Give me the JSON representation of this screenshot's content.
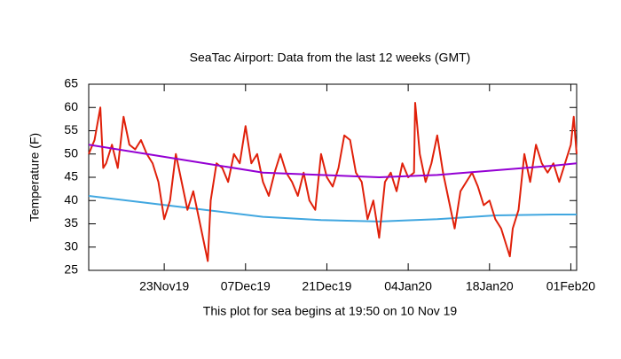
{
  "chart_data": {
    "type": "line",
    "title": "SeaTac Airport:   Data from the last 12 weeks (GMT)",
    "xlabel": "This plot for sea begins at 19:50 on 10 Nov 19",
    "ylabel": "Temperature (F)",
    "xlim": [
      0,
      84
    ],
    "ylim": [
      25,
      65
    ],
    "yticks": [
      25,
      30,
      35,
      40,
      45,
      50,
      55,
      60,
      65
    ],
    "xticks": [
      {
        "value": 13,
        "label": "23Nov19"
      },
      {
        "value": 27,
        "label": "07Dec19"
      },
      {
        "value": 41,
        "label": "21Dec19"
      },
      {
        "value": 55,
        "label": "04Jan20"
      },
      {
        "value": 69,
        "label": "18Jan20"
      },
      {
        "value": 83,
        "label": "01Feb20"
      }
    ],
    "series": [
      {
        "color": "#41a7e0",
        "x": [
          0,
          10,
          20,
          30,
          40,
          50,
          60,
          70,
          80,
          84
        ],
        "values": [
          41,
          39.5,
          38,
          36.5,
          35.8,
          35.5,
          36,
          36.8,
          37,
          37
        ]
      },
      {
        "color": "#e0200a",
        "x": [
          0,
          1,
          2,
          2.5,
          3,
          4,
          5,
          6,
          7,
          8,
          9,
          10,
          11,
          12,
          13,
          14,
          15,
          16,
          17,
          18,
          19,
          20,
          20.5,
          21,
          22,
          23,
          24,
          25,
          26,
          27,
          28,
          29,
          30,
          31,
          32,
          33,
          34,
          35,
          36,
          37,
          38,
          39,
          40,
          41,
          42,
          43,
          44,
          45,
          46,
          47,
          48,
          49,
          50,
          51,
          52,
          53,
          54,
          55,
          56,
          56.2,
          57,
          58,
          59,
          60,
          61,
          62,
          63,
          64,
          65,
          66,
          67,
          68,
          69,
          70,
          71,
          72,
          72.5,
          73,
          74,
          75,
          76,
          77,
          78,
          79,
          80,
          81,
          82,
          83,
          83.5,
          84
        ],
        "values": [
          50,
          53,
          60,
          47,
          48,
          52,
          47,
          58,
          52,
          51,
          53,
          50,
          48,
          44,
          36,
          40,
          50,
          44,
          38,
          42,
          36,
          30,
          27,
          40,
          48,
          47,
          44,
          50,
          48,
          56,
          48,
          50,
          44,
          41,
          46,
          50,
          46,
          44,
          41,
          46,
          40,
          38,
          50,
          45,
          43,
          47,
          54,
          53,
          46,
          44,
          36,
          40,
          32,
          44,
          46,
          42,
          48,
          45,
          46,
          61,
          50,
          44,
          48,
          54,
          46,
          40,
          34,
          42,
          44,
          46,
          43,
          39,
          40,
          36,
          34,
          30,
          28,
          34,
          38,
          50,
          44,
          52,
          48,
          46,
          48,
          44,
          48,
          52,
          58,
          50
        ]
      },
      {
        "color": "#9400d3",
        "x": [
          0,
          10,
          20,
          30,
          40,
          50,
          60,
          70,
          80,
          84
        ],
        "values": [
          52,
          50,
          48,
          46,
          45.5,
          45,
          45.5,
          46.5,
          47.5,
          48
        ]
      }
    ]
  }
}
